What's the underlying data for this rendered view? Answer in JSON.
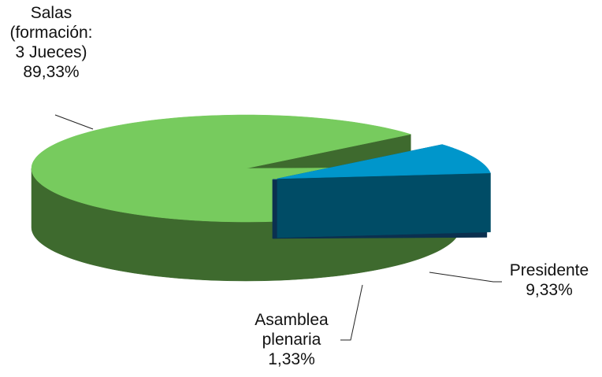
{
  "chart_data": {
    "type": "pie",
    "style": "3d-exploded",
    "title": "",
    "slices": [
      {
        "key": "salas",
        "label_lines": [
          "Salas",
          "(formación:",
          "3 Jueces)"
        ],
        "value_label": "89,33%",
        "value": 89.33,
        "top_color": "#77CB5E",
        "side_color": "#3E6A2E"
      },
      {
        "key": "presidente",
        "label_lines": [
          "Presidente"
        ],
        "value_label": "9,33%",
        "value": 9.33,
        "top_color": "#0096CB",
        "side_color": "#004C66"
      },
      {
        "key": "asamblea",
        "label_lines": [
          "Asamblea",
          "plenaria"
        ],
        "value_label": "1,33%",
        "value": 1.33,
        "top_color": "#1B5C8A",
        "side_color": "#0B304F"
      }
    ],
    "legend": "none"
  }
}
